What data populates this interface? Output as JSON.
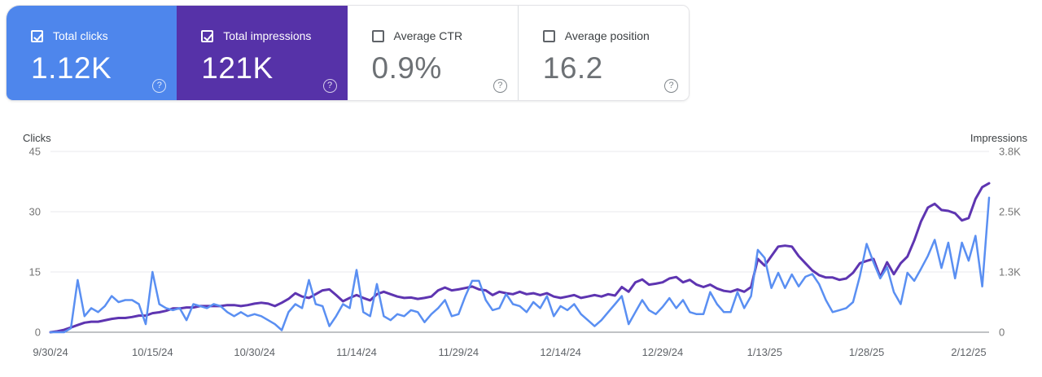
{
  "cards": [
    {
      "label": "Total clicks",
      "value": "1.12K",
      "selected": true,
      "color": "#4e86ec"
    },
    {
      "label": "Total impressions",
      "value": "121K",
      "selected": true,
      "color": "#5632a8"
    },
    {
      "label": "Average CTR",
      "value": "0.9%",
      "selected": false,
      "color": "#ffffff"
    },
    {
      "label": "Average position",
      "value": "16.2",
      "selected": false,
      "color": "#ffffff"
    }
  ],
  "icons": {
    "help_glyph": "?"
  },
  "colors": {
    "clicks_card": "#4e86ec",
    "impressions_card": "#5632a8",
    "clicks_line": "#5a8ff2",
    "impressions_line": "#5e35b1",
    "gridline": "#e8eaed",
    "zero_line": "#80868b"
  },
  "chart_data": {
    "type": "line",
    "left_axis": {
      "title": "Clicks",
      "ticks": [
        "0",
        "15",
        "30",
        "45"
      ],
      "max": 45
    },
    "right_axis": {
      "title": "Impressions",
      "ticks": [
        "0",
        "1.3K",
        "2.5K",
        "3.8K"
      ],
      "max": 3.8
    },
    "x_labels": [
      "9/30/24",
      "10/15/24",
      "10/30/24",
      "11/14/24",
      "11/29/24",
      "12/14/24",
      "12/29/24",
      "1/13/25",
      "1/28/25",
      "2/12/25"
    ],
    "x_label_interval_days": 15,
    "total_days": 138,
    "grid": true,
    "series": [
      {
        "name": "Clicks",
        "axis": "left",
        "color": "#5a8ff2",
        "width": 2.5,
        "values": [
          0,
          0,
          0,
          1,
          13,
          4,
          6,
          5,
          6.5,
          9,
          7.5,
          8,
          8,
          7,
          2,
          15,
          7,
          6,
          5.5,
          6,
          3,
          7,
          6.5,
          6,
          7,
          6.5,
          5,
          4,
          5,
          4,
          4.5,
          4,
          3,
          2,
          0.5,
          5,
          7,
          6,
          13,
          7,
          6.5,
          1.5,
          4,
          7,
          6,
          15.5,
          5,
          4,
          12,
          4,
          3,
          4.5,
          4,
          5.5,
          5,
          2.5,
          4.5,
          6,
          8,
          4,
          4.5,
          9,
          12.8,
          12.8,
          8,
          5.5,
          6,
          9.5,
          7,
          6.5,
          5,
          7.5,
          6,
          9,
          4,
          6.5,
          5.5,
          7,
          4.5,
          3,
          1.5,
          3,
          5,
          7,
          9,
          2,
          5,
          8,
          5.5,
          4.5,
          6.3,
          8.5,
          6,
          8,
          5,
          4.5,
          4.5,
          10,
          7,
          5,
          5,
          10,
          6,
          9,
          20.5,
          18.5,
          11,
          14.8,
          11,
          14.4,
          11.4,
          13.8,
          14.5,
          12,
          8,
          5,
          5.5,
          6,
          7.5,
          14,
          22,
          17.4,
          13.4,
          16.2,
          10,
          7,
          14.8,
          12.8,
          15.8,
          19,
          23,
          16,
          22.3,
          13.4,
          22.3,
          17.8,
          24,
          11.4,
          33.5
        ]
      },
      {
        "name": "Impressions",
        "axis": "right",
        "color": "#5e35b1",
        "width": 3,
        "values": [
          0,
          0.02,
          0.05,
          0.1,
          0.15,
          0.2,
          0.22,
          0.22,
          0.25,
          0.28,
          0.3,
          0.3,
          0.32,
          0.35,
          0.35,
          0.4,
          0.42,
          0.45,
          0.5,
          0.5,
          0.52,
          0.52,
          0.55,
          0.55,
          0.55,
          0.55,
          0.57,
          0.57,
          0.55,
          0.57,
          0.6,
          0.62,
          0.6,
          0.55,
          0.62,
          0.7,
          0.82,
          0.75,
          0.72,
          0.8,
          0.88,
          0.9,
          0.78,
          0.65,
          0.72,
          0.78,
          0.72,
          0.67,
          0.8,
          0.85,
          0.8,
          0.75,
          0.72,
          0.73,
          0.7,
          0.72,
          0.75,
          0.88,
          0.94,
          0.88,
          0.9,
          0.93,
          0.96,
          0.9,
          0.88,
          0.78,
          0.85,
          0.82,
          0.8,
          0.85,
          0.8,
          0.82,
          0.78,
          0.82,
          0.75,
          0.72,
          0.75,
          0.78,
          0.72,
          0.75,
          0.78,
          0.75,
          0.8,
          0.77,
          0.95,
          0.85,
          1.05,
          1.11,
          1.0,
          1.02,
          1.05,
          1.13,
          1.16,
          1.05,
          1.1,
          1.0,
          0.95,
          1.0,
          0.92,
          0.87,
          0.85,
          0.9,
          0.85,
          0.95,
          1.54,
          1.4,
          1.6,
          1.8,
          1.82,
          1.8,
          1.6,
          1.45,
          1.3,
          1.2,
          1.15,
          1.15,
          1.1,
          1.13,
          1.25,
          1.45,
          1.5,
          1.54,
          1.16,
          1.47,
          1.22,
          1.45,
          1.59,
          1.93,
          2.33,
          2.62,
          2.7,
          2.57,
          2.55,
          2.5,
          2.35,
          2.4,
          2.8,
          3.05,
          3.13
        ]
      }
    ]
  }
}
